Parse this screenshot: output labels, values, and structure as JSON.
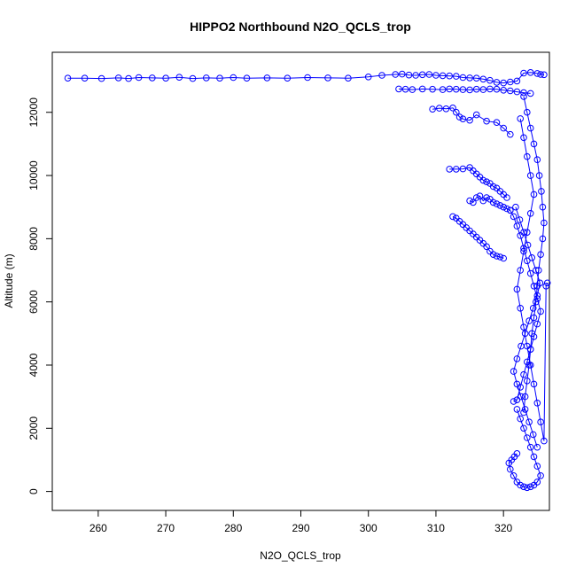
{
  "chart_data": {
    "type": "scatter",
    "title": "HIPPO2 Northbound N2O_QCLS_trop",
    "xlabel": "N2O_QCLS_trop",
    "ylabel": "Altitude (m)",
    "xlim": [
      253.2,
      326.8
    ],
    "ylim": [
      -600,
      13900
    ],
    "x_ticks": [
      260,
      270,
      280,
      290,
      300,
      310,
      320
    ],
    "y_ticks": [
      0,
      2000,
      4000,
      6000,
      8000,
      10000,
      12000
    ],
    "grid": false,
    "legend": "none",
    "marker": "open-circle",
    "connect_points": true,
    "color": "#0000ff",
    "series": [
      {
        "x": [
          255.5,
          258,
          260.5,
          263,
          264.5,
          266,
          268,
          270,
          272,
          274,
          276,
          278,
          280,
          282,
          285,
          288,
          291,
          294,
          297,
          300,
          302,
          304,
          305,
          306,
          307,
          308,
          309,
          310,
          311,
          312,
          313,
          314,
          315,
          316,
          317,
          318,
          319,
          320,
          321,
          322,
          323,
          324,
          325,
          326,
          325.5
        ],
        "y": [
          13080,
          13080,
          13070,
          13090,
          13070,
          13100,
          13090,
          13080,
          13110,
          13070,
          13090,
          13080,
          13100,
          13080,
          13090,
          13080,
          13100,
          13090,
          13080,
          13120,
          13170,
          13200,
          13210,
          13180,
          13170,
          13190,
          13200,
          13170,
          13160,
          13150,
          13140,
          13100,
          13090,
          13080,
          13050,
          13010,
          12950,
          12930,
          12960,
          12990,
          13240,
          13260,
          13230,
          13190,
          13200
        ]
      },
      {
        "x": [
          304.5,
          305.5,
          306.5,
          308,
          309.5,
          311,
          312,
          313,
          314,
          315,
          316,
          317,
          318,
          319,
          320,
          321,
          322,
          323,
          324
        ],
        "y": [
          12740,
          12730,
          12720,
          12740,
          12730,
          12720,
          12740,
          12730,
          12720,
          12710,
          12730,
          12720,
          12740,
          12730,
          12700,
          12680,
          12650,
          12620,
          12600
        ]
      },
      {
        "x": [
          309.5,
          310.5,
          311.5,
          312.5,
          313,
          313.5,
          314,
          315,
          316,
          317.5,
          319,
          320,
          321
        ],
        "y": [
          12100,
          12130,
          12110,
          12140,
          12000,
          11850,
          11790,
          11750,
          11920,
          11720,
          11680,
          11500,
          11300
        ]
      },
      {
        "x": [
          312,
          313,
          314,
          315,
          315.5,
          316,
          316.5,
          317,
          317.5,
          318,
          318.5,
          319,
          319.5,
          320,
          320.5
        ],
        "y": [
          10200,
          10200,
          10210,
          10250,
          10150,
          10050,
          9950,
          9850,
          9800,
          9750,
          9650,
          9600,
          9500,
          9400,
          9300
        ]
      },
      {
        "x": [
          312.5,
          313,
          313.5,
          314,
          314.5,
          315,
          315.5,
          316,
          316.5,
          317,
          317.5,
          318,
          318.5,
          319,
          319.5,
          320
        ],
        "y": [
          8700,
          8650,
          8550,
          8450,
          8350,
          8250,
          8150,
          8050,
          7950,
          7850,
          7750,
          7600,
          7500,
          7450,
          7420,
          7380
        ]
      },
      {
        "x": [
          315,
          315.5,
          316,
          316.5,
          317,
          317.5,
          318,
          318.5,
          319,
          319.5,
          320,
          320.5,
          321
        ],
        "y": [
          9200,
          9150,
          9300,
          9350,
          9200,
          9300,
          9250,
          9150,
          9100,
          9050,
          9000,
          8950,
          8900
        ]
      },
      {
        "x": [
          321,
          321.5,
          322,
          322.5,
          323,
          323.5,
          324,
          324.5,
          325,
          325.5,
          325,
          324.5,
          324,
          323.5,
          323,
          322.5,
          322,
          321.5
        ],
        "y": [
          8900,
          8700,
          8400,
          8100,
          7700,
          7300,
          6900,
          6500,
          6100,
          5700,
          5300,
          4900,
          4500,
          4100,
          3700,
          3300,
          2900,
          2850
        ]
      },
      {
        "x": [
          322,
          322.5,
          323,
          323.5,
          324,
          324.5,
          325,
          325.5,
          325,
          324.5,
          324,
          323.5,
          323,
          322.5,
          322,
          321.5,
          321,
          320.8,
          321.2,
          321.6,
          322
        ],
        "y": [
          2600,
          2300,
          2000,
          1700,
          1400,
          1100,
          800,
          500,
          300,
          200,
          150,
          120,
          150,
          200,
          300,
          500,
          700,
          900,
          1000,
          1100,
          1200
        ]
      },
      {
        "x": [
          323,
          323.5,
          324,
          324.5,
          325,
          325.3,
          325.6,
          325.8,
          326,
          325.8,
          325.5,
          325.2,
          325,
          324.8,
          324.5,
          324.2,
          324,
          323.8,
          323.5,
          323.2,
          323
        ],
        "y": [
          12500,
          12000,
          11500,
          11000,
          10500,
          10000,
          9500,
          9000,
          8500,
          8000,
          7500,
          7000,
          6500,
          6000,
          5500,
          5000,
          4500,
          4000,
          3500,
          3000,
          2500
        ]
      },
      {
        "x": [
          322.5,
          323,
          323.5,
          324,
          324.5,
          324,
          323.5,
          323,
          322.5,
          322,
          322.5,
          323,
          323.5,
          324,
          324.5,
          325,
          325.5,
          326,
          326.3,
          326.5
        ],
        "y": [
          11800,
          11200,
          10600,
          10000,
          9400,
          8800,
          8200,
          7600,
          7000,
          6400,
          5800,
          5200,
          4600,
          4000,
          3400,
          2800,
          2200,
          1600,
          6500,
          6600
        ]
      },
      {
        "x": [
          321.8,
          322.4,
          323,
          323.6,
          324.2,
          324.8,
          325.4,
          325,
          324.4,
          323.8,
          323.2,
          322.6,
          322,
          321.5,
          322,
          322.6,
          323.2,
          323.8,
          324.4,
          325
        ],
        "y": [
          9000,
          8600,
          8200,
          7800,
          7400,
          7000,
          6600,
          6200,
          5800,
          5400,
          5000,
          4600,
          4200,
          3800,
          3400,
          3000,
          2600,
          2200,
          1800,
          1400
        ]
      }
    ]
  }
}
